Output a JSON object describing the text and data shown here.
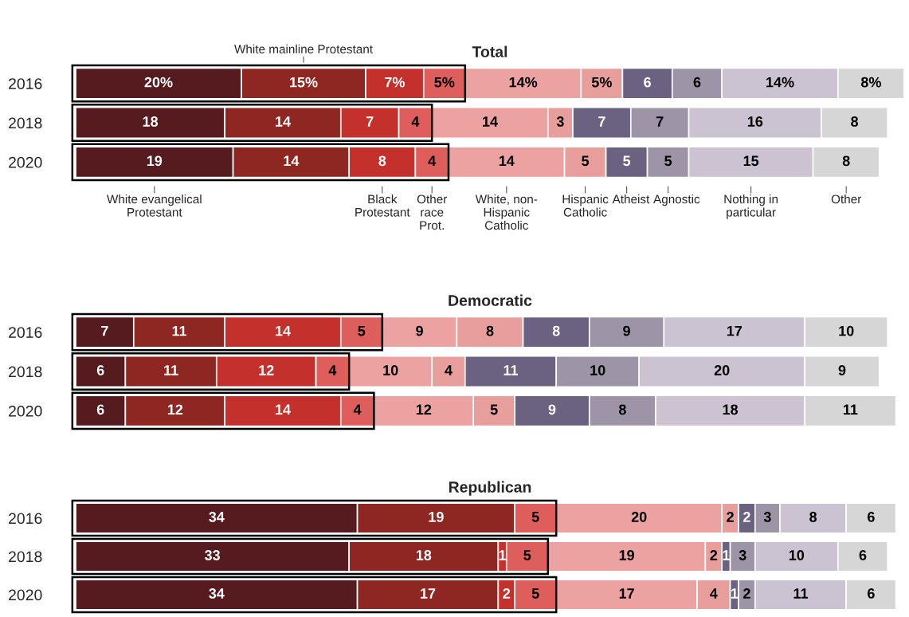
{
  "chart_data": [
    {
      "type": "bar",
      "title": "Total",
      "orientation": "horizontal",
      "stacked": true,
      "tick_labels": "y",
      "categories": [
        "2016",
        "2018",
        "2020"
      ],
      "series": [
        {
          "name": "White evangelical\nProtestant",
          "color": "#561b1e",
          "values": [
            20,
            18,
            19
          ],
          "value_labels": [
            "20%",
            "18",
            "19"
          ]
        },
        {
          "name": "White mainline Protestant",
          "color": "#8e2621",
          "values": [
            15,
            14,
            14
          ],
          "value_labels": [
            "15%",
            "14",
            "14"
          ]
        },
        {
          "name": "Black\nProtestant",
          "color": "#c4302b",
          "values": [
            7,
            7,
            8
          ],
          "value_labels": [
            "7%",
            "7",
            "8"
          ]
        },
        {
          "name": "Other\nrace\nProt.",
          "color": "#dd5e5a",
          "values": [
            5,
            4,
            4
          ],
          "value_labels": [
            "5%",
            "4",
            "4"
          ]
        },
        {
          "name": "White, non-\nHispanic\nCatholic",
          "color": "#eba2a0",
          "values": [
            14,
            14,
            14
          ],
          "value_labels": [
            "14%",
            "14",
            "14"
          ]
        },
        {
          "name": "Hispanic\nCatholic",
          "color": "#e89f9c",
          "values": [
            5,
            3,
            5
          ],
          "value_labels": [
            "5%",
            "3",
            "5"
          ]
        },
        {
          "name": "Atheist",
          "color": "#6b6282",
          "values": [
            6,
            7,
            5
          ],
          "value_labels": [
            "6",
            "7",
            "5"
          ]
        },
        {
          "name": "Agnostic",
          "color": "#9d94a8",
          "values": [
            6,
            7,
            5
          ],
          "value_labels": [
            "6",
            "7",
            "5"
          ]
        },
        {
          "name": "Nothing in\nparticular",
          "color": "#cbc2d2",
          "values": [
            14,
            16,
            15
          ],
          "value_labels": [
            "14%",
            "16",
            "15"
          ]
        },
        {
          "name": "Other",
          "color": "#d6d6d6",
          "values": [
            8,
            8,
            8
          ],
          "value_labels": [
            "8%",
            "8",
            "8"
          ]
        }
      ]
    },
    {
      "type": "bar",
      "title": "Democratic",
      "orientation": "horizontal",
      "stacked": true,
      "tick_labels": "y",
      "data_labels": true,
      "categories": [
        "2016",
        "2018",
        "2020"
      ],
      "series": [
        {
          "color": "#561b1e",
          "values": [
            7,
            6,
            6
          ]
        },
        {
          "color": "#8e2621",
          "values": [
            11,
            11,
            12
          ]
        },
        {
          "color": "#c4302b",
          "values": [
            14,
            12,
            14
          ]
        },
        {
          "color": "#dd5e5a",
          "values": [
            5,
            4,
            4
          ]
        },
        {
          "color": "#eba2a0",
          "values": [
            9,
            10,
            12
          ]
        },
        {
          "color": "#e89f9c",
          "values": [
            8,
            4,
            5
          ]
        },
        {
          "color": "#6b6282",
          "values": [
            8,
            11,
            9
          ]
        },
        {
          "color": "#9d94a8",
          "values": [
            9,
            10,
            8
          ]
        },
        {
          "color": "#cbc2d2",
          "values": [
            17,
            20,
            18
          ]
        },
        {
          "color": "#d6d6d6",
          "values": [
            10,
            9,
            11
          ]
        }
      ]
    },
    {
      "type": "bar",
      "title": "Republican",
      "orientation": "horizontal",
      "stacked": true,
      "tick_labels": "y",
      "data_labels": true,
      "categories": [
        "2016",
        "2018",
        "2020"
      ],
      "series": [
        {
          "color": "#561b1e",
          "values": [
            34,
            33,
            34
          ]
        },
        {
          "color": "#8e2621",
          "values": [
            19,
            18,
            17
          ]
        },
        {
          "color": "#c4302b",
          "values": [
            null,
            1,
            2
          ]
        },
        {
          "color": "#dd5e5a",
          "values": [
            5,
            5,
            5
          ]
        },
        {
          "color": "#eba2a0",
          "values": [
            20,
            19,
            17
          ]
        },
        {
          "color": "#e89f9c",
          "values": [
            2,
            2,
            4
          ]
        },
        {
          "color": "#6b6282",
          "values": [
            2,
            1,
            1
          ]
        },
        {
          "color": "#9d94a8",
          "values": [
            3,
            3,
            2
          ]
        },
        {
          "color": "#cbc2d2",
          "values": [
            8,
            10,
            11
          ]
        },
        {
          "color": "#d6d6d6",
          "values": [
            6,
            6,
            6
          ]
        }
      ]
    }
  ]
}
